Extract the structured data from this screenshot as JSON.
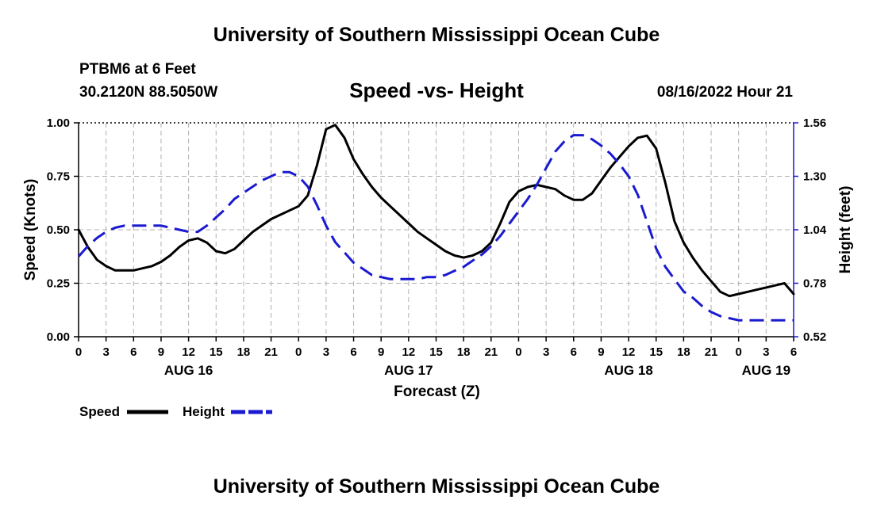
{
  "page": {
    "title_top": "University of Southern Mississippi Ocean Cube",
    "title_bottom": "University of Southern Mississippi Ocean Cube",
    "station": "PTBM6 at 6 Feet",
    "location": "30.2120N  88.5050W",
    "datetime": "08/16/2022 Hour 21"
  },
  "colors": {
    "speed": "#000000",
    "height": "#1a1ad0",
    "grid": "#b0b0b0"
  },
  "chart_data": {
    "type": "line",
    "title": "Speed -vs- Height",
    "xlabel": "Forecast (Z)",
    "ylabel": "Speed (Knots)",
    "y2label": "Height (feet)",
    "x_unit": "hours from AUG 16 00Z",
    "xlim": [
      0,
      78
    ],
    "ylim": [
      0,
      1.0
    ],
    "y2lim": [
      0.52,
      1.56
    ],
    "x_ticks": [
      0,
      3,
      6,
      9,
      12,
      15,
      18,
      21,
      24,
      27,
      30,
      33,
      36,
      39,
      42,
      45,
      48,
      51,
      54,
      57,
      60,
      63,
      66,
      69,
      72,
      75,
      78
    ],
    "x_tick_labels": [
      "0",
      "3",
      "6",
      "9",
      "12",
      "15",
      "18",
      "21",
      "0",
      "3",
      "6",
      "9",
      "12",
      "15",
      "18",
      "21",
      "0",
      "3",
      "6",
      "9",
      "12",
      "15",
      "18",
      "21",
      "0",
      "3",
      "6"
    ],
    "day_labels": [
      {
        "x": 12,
        "label": "AUG 16"
      },
      {
        "x": 36,
        "label": "AUG 17"
      },
      {
        "x": 60,
        "label": "AUG 18"
      },
      {
        "x": 75,
        "label": "AUG 19"
      }
    ],
    "y_ticks": [
      0,
      0.25,
      0.5,
      0.75,
      1.0
    ],
    "y_tick_labels": [
      "0.00",
      "0.25",
      "0.50",
      "0.75",
      "1.00"
    ],
    "y2_ticks": [
      0.52,
      0.78,
      1.04,
      1.3,
      1.56
    ],
    "y2_tick_labels": [
      "0.52",
      "0.78",
      "1.04",
      "1.30",
      "1.56"
    ],
    "legend": [
      {
        "label": "Speed",
        "series": "speed"
      },
      {
        "label": "Height",
        "series": "height"
      }
    ],
    "series": [
      {
        "name": "Speed",
        "key": "speed",
        "axis": "left",
        "style": "solid",
        "x": [
          0,
          1,
          2,
          3,
          4,
          5,
          6,
          7,
          8,
          9,
          10,
          11,
          12,
          13,
          14,
          15,
          16,
          17,
          18,
          19,
          20,
          21,
          22,
          23,
          24,
          25,
          26,
          27,
          28,
          29,
          30,
          31,
          32,
          33,
          34,
          35,
          36,
          37,
          38,
          39,
          40,
          41,
          42,
          43,
          44,
          45,
          46,
          47,
          48,
          49,
          50,
          51,
          52,
          53,
          54,
          55,
          56,
          57,
          58,
          59,
          60,
          61,
          62,
          63,
          64,
          65,
          66,
          67,
          68,
          69,
          70,
          71,
          72,
          73,
          74,
          75,
          76,
          77,
          78
        ],
        "y": [
          0.5,
          0.42,
          0.36,
          0.33,
          0.31,
          0.31,
          0.31,
          0.32,
          0.33,
          0.35,
          0.38,
          0.42,
          0.45,
          0.46,
          0.44,
          0.4,
          0.39,
          0.41,
          0.45,
          0.49,
          0.52,
          0.55,
          0.57,
          0.59,
          0.61,
          0.66,
          0.8,
          0.97,
          0.99,
          0.93,
          0.83,
          0.76,
          0.7,
          0.65,
          0.61,
          0.57,
          0.53,
          0.49,
          0.46,
          0.43,
          0.4,
          0.38,
          0.37,
          0.38,
          0.4,
          0.44,
          0.53,
          0.63,
          0.68,
          0.7,
          0.71,
          0.7,
          0.69,
          0.66,
          0.64,
          0.64,
          0.67,
          0.73,
          0.79,
          0.84,
          0.89,
          0.93,
          0.94,
          0.88,
          0.72,
          0.54,
          0.44,
          0.37,
          0.31,
          0.26,
          0.21,
          0.19,
          0.2,
          0.21,
          0.22,
          0.23,
          0.24,
          0.25,
          0.2
        ]
      },
      {
        "name": "Height",
        "key": "height",
        "axis": "right",
        "style": "dashed",
        "x": [
          0,
          1,
          2,
          3,
          4,
          5,
          6,
          7,
          8,
          9,
          10,
          11,
          12,
          13,
          14,
          15,
          16,
          17,
          18,
          19,
          20,
          21,
          22,
          23,
          24,
          25,
          26,
          27,
          28,
          29,
          30,
          31,
          32,
          33,
          34,
          35,
          36,
          37,
          38,
          39,
          40,
          41,
          42,
          43,
          44,
          45,
          46,
          47,
          48,
          49,
          50,
          51,
          52,
          53,
          54,
          55,
          56,
          57,
          58,
          59,
          60,
          61,
          62,
          63,
          64,
          65,
          66,
          67,
          68,
          69,
          70,
          71,
          72,
          73,
          74,
          75,
          76,
          77,
          78
        ],
        "y": [
          0.91,
          0.96,
          1.0,
          1.03,
          1.05,
          1.06,
          1.06,
          1.06,
          1.06,
          1.06,
          1.05,
          1.04,
          1.03,
          1.03,
          1.06,
          1.1,
          1.14,
          1.19,
          1.22,
          1.25,
          1.28,
          1.3,
          1.32,
          1.32,
          1.3,
          1.25,
          1.16,
          1.06,
          0.98,
          0.93,
          0.88,
          0.85,
          0.82,
          0.81,
          0.8,
          0.8,
          0.8,
          0.8,
          0.81,
          0.81,
          0.82,
          0.84,
          0.86,
          0.89,
          0.92,
          0.96,
          1.01,
          1.07,
          1.13,
          1.19,
          1.26,
          1.34,
          1.42,
          1.47,
          1.5,
          1.5,
          1.48,
          1.45,
          1.41,
          1.36,
          1.3,
          1.21,
          1.08,
          0.95,
          0.86,
          0.8,
          0.74,
          0.71,
          0.67,
          0.64,
          0.62,
          0.61,
          0.6,
          0.6,
          0.6,
          0.6,
          0.6,
          0.6,
          0.6
        ]
      }
    ]
  }
}
